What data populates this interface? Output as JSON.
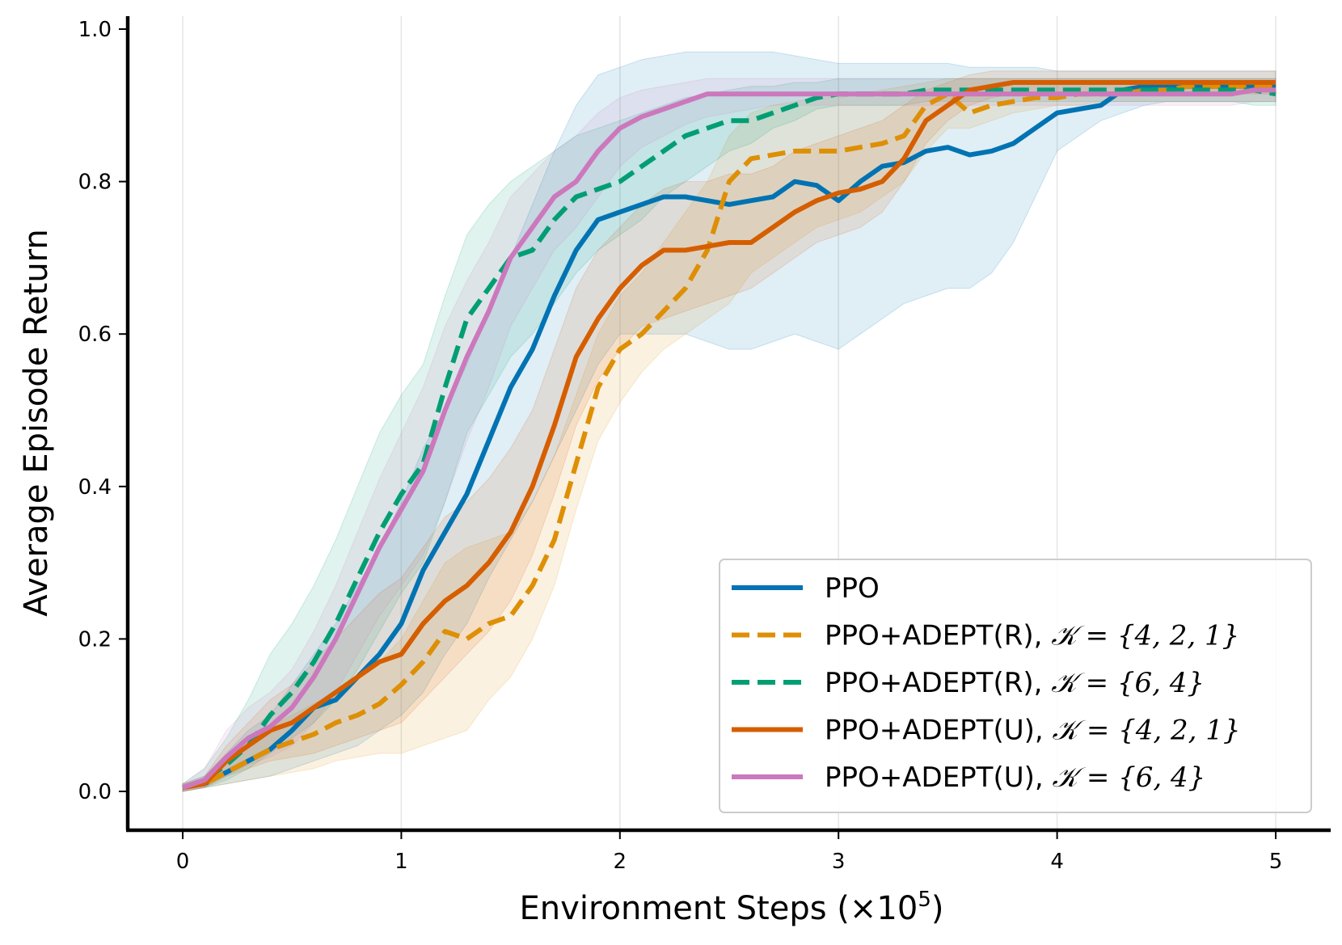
{
  "chart_data": {
    "type": "line",
    "title": "",
    "xlabel": "Environment Steps (×10",
    "xlabel_exp": "5",
    "xlabel_close": ")",
    "ylabel": "Average Episode Return",
    "xlim": [
      -0.25,
      5.25
    ],
    "ylim": [
      -0.055,
      1.03
    ],
    "xticks": [
      0,
      1,
      2,
      3,
      4,
      5
    ],
    "xtick_labels": [
      "0",
      "1",
      "2",
      "3",
      "4",
      "5"
    ],
    "yticks": [
      0.0,
      0.2,
      0.4,
      0.6,
      0.8,
      1.0
    ],
    "ytick_labels": [
      "0.0",
      "0.2",
      "0.4",
      "0.6",
      "0.8",
      "1.0"
    ],
    "grid": "vertical",
    "legend_position": "bottom-right",
    "series": [
      {
        "name": "PPO",
        "legend_prefix": "PPO",
        "legend_math": "",
        "color": "#0173b2",
        "dash": "solid",
        "x": [
          0,
          0.1,
          0.2,
          0.3,
          0.4,
          0.5,
          0.6,
          0.7,
          0.8,
          0.9,
          1.0,
          1.1,
          1.2,
          1.3,
          1.4,
          1.5,
          1.6,
          1.7,
          1.8,
          1.9,
          2.0,
          2.1,
          2.2,
          2.3,
          2.4,
          2.5,
          2.6,
          2.7,
          2.8,
          2.9,
          3.0,
          3.1,
          3.2,
          3.3,
          3.4,
          3.5,
          3.6,
          3.7,
          3.8,
          3.9,
          4.0,
          4.1,
          4.2,
          4.3,
          4.4,
          4.5,
          4.6,
          4.7,
          4.8,
          4.9,
          5.0
        ],
        "y": [
          0.005,
          0.01,
          0.025,
          0.04,
          0.055,
          0.08,
          0.11,
          0.12,
          0.15,
          0.18,
          0.22,
          0.29,
          0.34,
          0.39,
          0.46,
          0.53,
          0.58,
          0.65,
          0.71,
          0.75,
          0.76,
          0.77,
          0.78,
          0.78,
          0.775,
          0.77,
          0.775,
          0.78,
          0.8,
          0.795,
          0.775,
          0.8,
          0.82,
          0.825,
          0.84,
          0.845,
          0.835,
          0.84,
          0.85,
          0.87,
          0.89,
          0.895,
          0.9,
          0.92,
          0.925,
          0.925,
          0.925,
          0.925,
          0.925,
          0.925,
          0.925
        ],
        "band_lower": [
          0.0,
          0.005,
          0.01,
          0.015,
          0.02,
          0.03,
          0.04,
          0.05,
          0.06,
          0.08,
          0.1,
          0.13,
          0.18,
          0.22,
          0.28,
          0.33,
          0.38,
          0.44,
          0.5,
          0.56,
          0.6,
          0.6,
          0.6,
          0.6,
          0.59,
          0.58,
          0.58,
          0.59,
          0.6,
          0.59,
          0.58,
          0.6,
          0.62,
          0.64,
          0.65,
          0.66,
          0.66,
          0.68,
          0.72,
          0.78,
          0.84,
          0.86,
          0.88,
          0.89,
          0.9,
          0.905,
          0.905,
          0.905,
          0.905,
          0.905,
          0.905
        ],
        "band_upper": [
          0.01,
          0.02,
          0.05,
          0.08,
          0.1,
          0.14,
          0.18,
          0.22,
          0.27,
          0.32,
          0.38,
          0.45,
          0.5,
          0.56,
          0.63,
          0.7,
          0.77,
          0.84,
          0.9,
          0.94,
          0.95,
          0.96,
          0.965,
          0.97,
          0.97,
          0.97,
          0.97,
          0.97,
          0.965,
          0.96,
          0.955,
          0.955,
          0.955,
          0.955,
          0.955,
          0.955,
          0.95,
          0.95,
          0.95,
          0.95,
          0.945,
          0.945,
          0.945,
          0.945,
          0.945,
          0.945,
          0.945,
          0.945,
          0.945,
          0.945,
          0.945
        ]
      },
      {
        "name": "PPO+ADEPT(R), K={4,2,1}",
        "legend_prefix": "PPO+ADEPT(R), ",
        "legend_math": "𝒦 = {4, 2, 1}",
        "color": "#de8f05",
        "dash": "dashed",
        "x": [
          0,
          0.1,
          0.2,
          0.3,
          0.4,
          0.5,
          0.6,
          0.7,
          0.8,
          0.9,
          1.0,
          1.1,
          1.2,
          1.3,
          1.4,
          1.5,
          1.6,
          1.7,
          1.8,
          1.9,
          2.0,
          2.1,
          2.2,
          2.3,
          2.4,
          2.5,
          2.6,
          2.7,
          2.8,
          2.9,
          3.0,
          3.1,
          3.2,
          3.3,
          3.4,
          3.5,
          3.6,
          3.7,
          3.8,
          3.9,
          4.0,
          4.1,
          4.2,
          4.3,
          4.4,
          4.5,
          4.6,
          4.7,
          4.8,
          4.9,
          5.0
        ],
        "y": [
          0.005,
          0.01,
          0.025,
          0.04,
          0.055,
          0.065,
          0.075,
          0.09,
          0.1,
          0.115,
          0.14,
          0.17,
          0.21,
          0.2,
          0.22,
          0.23,
          0.27,
          0.33,
          0.43,
          0.53,
          0.58,
          0.6,
          0.63,
          0.66,
          0.71,
          0.8,
          0.83,
          0.835,
          0.84,
          0.84,
          0.84,
          0.845,
          0.85,
          0.86,
          0.9,
          0.915,
          0.89,
          0.9,
          0.905,
          0.91,
          0.91,
          0.915,
          0.915,
          0.915,
          0.92,
          0.92,
          0.925,
          0.925,
          0.925,
          0.925,
          0.925
        ],
        "band_lower": [
          0.0,
          0.005,
          0.01,
          0.015,
          0.02,
          0.025,
          0.03,
          0.04,
          0.045,
          0.05,
          0.05,
          0.06,
          0.07,
          0.08,
          0.12,
          0.15,
          0.2,
          0.27,
          0.37,
          0.46,
          0.51,
          0.55,
          0.58,
          0.6,
          0.62,
          0.64,
          0.68,
          0.7,
          0.72,
          0.74,
          0.75,
          0.76,
          0.78,
          0.8,
          0.84,
          0.87,
          0.87,
          0.88,
          0.89,
          0.895,
          0.9,
          0.9,
          0.905,
          0.905,
          0.905,
          0.905,
          0.905,
          0.905,
          0.905,
          0.905,
          0.905
        ],
        "band_upper": [
          0.01,
          0.015,
          0.035,
          0.06,
          0.085,
          0.1,
          0.115,
          0.13,
          0.15,
          0.17,
          0.2,
          0.25,
          0.3,
          0.32,
          0.33,
          0.34,
          0.38,
          0.44,
          0.52,
          0.6,
          0.65,
          0.68,
          0.72,
          0.76,
          0.8,
          0.86,
          0.89,
          0.9,
          0.905,
          0.91,
          0.91,
          0.915,
          0.92,
          0.925,
          0.93,
          0.935,
          0.935,
          0.935,
          0.935,
          0.935,
          0.935,
          0.935,
          0.935,
          0.935,
          0.935,
          0.935,
          0.935,
          0.935,
          0.935,
          0.935,
          0.935
        ]
      },
      {
        "name": "PPO+ADEPT(R), K={6,4}",
        "legend_prefix": "PPO+ADEPT(R), ",
        "legend_math": "𝒦 = {6, 4}",
        "color": "#029e73",
        "dash": "dashed",
        "x": [
          0,
          0.1,
          0.2,
          0.3,
          0.4,
          0.5,
          0.6,
          0.7,
          0.8,
          0.9,
          1.0,
          1.1,
          1.2,
          1.3,
          1.4,
          1.5,
          1.6,
          1.7,
          1.8,
          1.9,
          2.0,
          2.1,
          2.2,
          2.3,
          2.4,
          2.5,
          2.6,
          2.7,
          2.8,
          2.9,
          3.0,
          3.1,
          3.2,
          3.3,
          3.4,
          3.5,
          3.6,
          3.7,
          3.8,
          3.9,
          4.0,
          4.1,
          4.2,
          4.3,
          4.4,
          4.5,
          4.6,
          4.7,
          4.8,
          4.9,
          5.0
        ],
        "y": [
          0.005,
          0.015,
          0.035,
          0.06,
          0.1,
          0.13,
          0.17,
          0.22,
          0.28,
          0.34,
          0.39,
          0.43,
          0.53,
          0.62,
          0.66,
          0.7,
          0.71,
          0.75,
          0.78,
          0.79,
          0.8,
          0.82,
          0.84,
          0.86,
          0.87,
          0.88,
          0.88,
          0.89,
          0.9,
          0.91,
          0.915,
          0.915,
          0.915,
          0.915,
          0.92,
          0.92,
          0.92,
          0.92,
          0.92,
          0.92,
          0.92,
          0.92,
          0.92,
          0.92,
          0.92,
          0.92,
          0.92,
          0.92,
          0.92,
          0.92,
          0.915
        ],
        "band_lower": [
          0.0,
          0.005,
          0.015,
          0.03,
          0.05,
          0.07,
          0.09,
          0.12,
          0.16,
          0.21,
          0.26,
          0.3,
          0.38,
          0.47,
          0.52,
          0.57,
          0.6,
          0.64,
          0.68,
          0.71,
          0.73,
          0.75,
          0.78,
          0.8,
          0.82,
          0.84,
          0.85,
          0.87,
          0.88,
          0.895,
          0.9,
          0.9,
          0.9,
          0.9,
          0.905,
          0.905,
          0.905,
          0.905,
          0.905,
          0.905,
          0.905,
          0.905,
          0.905,
          0.905,
          0.905,
          0.905,
          0.905,
          0.905,
          0.905,
          0.9,
          0.9
        ],
        "band_upper": [
          0.01,
          0.03,
          0.07,
          0.12,
          0.18,
          0.22,
          0.27,
          0.33,
          0.4,
          0.47,
          0.52,
          0.56,
          0.65,
          0.73,
          0.77,
          0.8,
          0.82,
          0.84,
          0.86,
          0.87,
          0.88,
          0.89,
          0.9,
          0.91,
          0.915,
          0.92,
          0.925,
          0.925,
          0.93,
          0.93,
          0.935,
          0.935,
          0.935,
          0.935,
          0.935,
          0.935,
          0.935,
          0.935,
          0.935,
          0.935,
          0.935,
          0.935,
          0.935,
          0.935,
          0.935,
          0.935,
          0.935,
          0.935,
          0.935,
          0.935,
          0.935
        ]
      },
      {
        "name": "PPO+ADEPT(U), K={4,2,1}",
        "legend_prefix": "PPO+ADEPT(U), ",
        "legend_math": "𝒦 = {4, 2, 1}",
        "color": "#d55e00",
        "dash": "solid",
        "x": [
          0,
          0.1,
          0.2,
          0.3,
          0.4,
          0.5,
          0.6,
          0.7,
          0.8,
          0.9,
          1.0,
          1.1,
          1.2,
          1.3,
          1.4,
          1.5,
          1.6,
          1.7,
          1.8,
          1.9,
          2.0,
          2.1,
          2.2,
          2.3,
          2.4,
          2.5,
          2.6,
          2.7,
          2.8,
          2.9,
          3.0,
          3.1,
          3.2,
          3.3,
          3.4,
          3.5,
          3.6,
          3.7,
          3.8,
          3.9,
          4.0,
          4.1,
          4.2,
          4.3,
          4.4,
          4.5,
          4.6,
          4.7,
          4.8,
          4.9,
          5.0
        ],
        "y": [
          0.005,
          0.01,
          0.04,
          0.06,
          0.08,
          0.09,
          0.11,
          0.13,
          0.15,
          0.17,
          0.18,
          0.22,
          0.25,
          0.27,
          0.3,
          0.34,
          0.4,
          0.48,
          0.57,
          0.62,
          0.66,
          0.69,
          0.71,
          0.71,
          0.715,
          0.72,
          0.72,
          0.74,
          0.76,
          0.775,
          0.785,
          0.79,
          0.8,
          0.83,
          0.88,
          0.9,
          0.92,
          0.925,
          0.93,
          0.93,
          0.93,
          0.93,
          0.93,
          0.93,
          0.93,
          0.93,
          0.93,
          0.93,
          0.93,
          0.93,
          0.93
        ],
        "band_lower": [
          0.0,
          0.005,
          0.02,
          0.03,
          0.04,
          0.045,
          0.05,
          0.06,
          0.07,
          0.08,
          0.09,
          0.12,
          0.15,
          0.18,
          0.21,
          0.25,
          0.31,
          0.39,
          0.48,
          0.54,
          0.58,
          0.61,
          0.62,
          0.63,
          0.64,
          0.65,
          0.66,
          0.68,
          0.7,
          0.72,
          0.73,
          0.74,
          0.76,
          0.8,
          0.85,
          0.88,
          0.9,
          0.91,
          0.915,
          0.915,
          0.915,
          0.915,
          0.915,
          0.915,
          0.915,
          0.915,
          0.915,
          0.915,
          0.915,
          0.915,
          0.915
        ],
        "band_upper": [
          0.01,
          0.02,
          0.06,
          0.09,
          0.12,
          0.14,
          0.17,
          0.2,
          0.23,
          0.26,
          0.28,
          0.32,
          0.36,
          0.38,
          0.41,
          0.45,
          0.5,
          0.58,
          0.66,
          0.71,
          0.74,
          0.77,
          0.79,
          0.8,
          0.8,
          0.81,
          0.81,
          0.82,
          0.84,
          0.85,
          0.86,
          0.87,
          0.88,
          0.9,
          0.92,
          0.93,
          0.94,
          0.945,
          0.945,
          0.945,
          0.945,
          0.945,
          0.945,
          0.945,
          0.945,
          0.945,
          0.945,
          0.945,
          0.945,
          0.945,
          0.945
        ]
      },
      {
        "name": "PPO+ADEPT(U), K={6,4}",
        "legend_prefix": "PPO+ADEPT(U), ",
        "legend_math": "𝒦 = {6, 4}",
        "color": "#cc78bc",
        "dash": "solid",
        "x": [
          0,
          0.1,
          0.2,
          0.3,
          0.4,
          0.5,
          0.6,
          0.7,
          0.8,
          0.9,
          1.0,
          1.1,
          1.2,
          1.3,
          1.4,
          1.5,
          1.6,
          1.7,
          1.8,
          1.9,
          2.0,
          2.1,
          2.2,
          2.3,
          2.4,
          2.5,
          2.6,
          2.7,
          2.8,
          2.9,
          3.0,
          3.1,
          3.2,
          3.3,
          3.4,
          3.5,
          3.6,
          3.7,
          3.8,
          3.9,
          4.0,
          4.1,
          4.2,
          4.3,
          4.4,
          4.5,
          4.6,
          4.7,
          4.8,
          4.9,
          5.0
        ],
        "y": [
          0.005,
          0.015,
          0.045,
          0.07,
          0.085,
          0.11,
          0.15,
          0.2,
          0.26,
          0.32,
          0.37,
          0.42,
          0.5,
          0.57,
          0.63,
          0.7,
          0.74,
          0.78,
          0.8,
          0.84,
          0.87,
          0.885,
          0.895,
          0.905,
          0.915,
          0.915,
          0.915,
          0.915,
          0.915,
          0.915,
          0.915,
          0.915,
          0.915,
          0.915,
          0.915,
          0.915,
          0.915,
          0.915,
          0.915,
          0.915,
          0.915,
          0.915,
          0.915,
          0.915,
          0.915,
          0.915,
          0.915,
          0.915,
          0.915,
          0.92,
          0.92
        ],
        "band_lower": [
          0.0,
          0.005,
          0.02,
          0.035,
          0.045,
          0.06,
          0.09,
          0.13,
          0.18,
          0.23,
          0.27,
          0.31,
          0.38,
          0.46,
          0.53,
          0.61,
          0.66,
          0.71,
          0.74,
          0.78,
          0.82,
          0.845,
          0.86,
          0.875,
          0.885,
          0.89,
          0.895,
          0.9,
          0.9,
          0.9,
          0.9,
          0.9,
          0.9,
          0.9,
          0.9,
          0.9,
          0.9,
          0.9,
          0.9,
          0.9,
          0.9,
          0.9,
          0.9,
          0.9,
          0.9,
          0.9,
          0.9,
          0.9,
          0.9,
          0.905,
          0.905
        ],
        "band_upper": [
          0.01,
          0.03,
          0.08,
          0.11,
          0.13,
          0.16,
          0.21,
          0.27,
          0.34,
          0.41,
          0.47,
          0.53,
          0.61,
          0.67,
          0.72,
          0.78,
          0.81,
          0.84,
          0.86,
          0.89,
          0.91,
          0.92,
          0.925,
          0.93,
          0.935,
          0.935,
          0.935,
          0.935,
          0.935,
          0.935,
          0.935,
          0.935,
          0.935,
          0.935,
          0.935,
          0.935,
          0.935,
          0.935,
          0.935,
          0.935,
          0.935,
          0.935,
          0.935,
          0.935,
          0.935,
          0.935,
          0.935,
          0.935,
          0.935,
          0.935,
          0.935
        ]
      }
    ]
  }
}
